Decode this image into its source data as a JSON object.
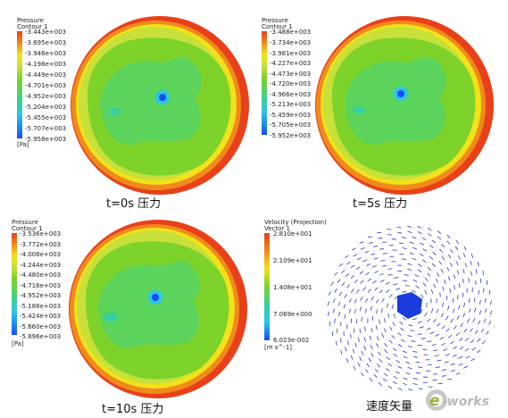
{
  "panels": [
    {
      "legend_title_1": "Pressure",
      "legend_title_2": "Contour 1",
      "unit": "[Pa]",
      "ticks": [
        "-3.443e+003",
        "-3.695e+003",
        "-3.946e+003",
        "-4.198e+003",
        "-4.449e+003",
        "-4.701e+003",
        "-4.952e+003",
        "-5.204e+003",
        "-5.455e+003",
        "-5.707e+003",
        "-5.958e+003"
      ],
      "caption": "t=0s 压力"
    },
    {
      "legend_title_1": "Pressure",
      "legend_title_2": "Contour 1",
      "unit": "[Pa]",
      "ticks": [
        "-3.488e+003",
        "-3.734e+003",
        "-3.981e+003",
        "-4.227e+003",
        "-4.473e+003",
        "-4.720e+003",
        "-4.966e+003",
        "-5.213e+003",
        "-5.459e+003",
        "-5.705e+003",
        "-5.952e+003"
      ],
      "caption": "t=5s 压力"
    },
    {
      "legend_title_1": "Pressure",
      "legend_title_2": "Contour 1",
      "unit": "[Pa]",
      "ticks": [
        "-3.536e+003",
        "-3.772e+003",
        "-4.008e+003",
        "-4.244e+003",
        "-4.480e+003",
        "-4.716e+003",
        "-4.952e+003",
        "-5.188e+003",
        "-5.424e+003",
        "-5.660e+003",
        "-5.896e+003"
      ],
      "caption": "t=10s 压力"
    },
    {
      "legend_title_1": "Velocity (Projection)",
      "legend_title_2": "Vector 1",
      "unit": "[m s^-1]",
      "ticks": [
        "2.810e+001",
        "2.109e+001",
        "1.408e+001",
        "7.069e+000",
        "6.023e-002"
      ],
      "caption": "速度矢量"
    }
  ],
  "logo_text": "e-works",
  "colors": {
    "red": "#e8401a",
    "orange": "#f08a1c",
    "yellow": "#f2e21a",
    "yellowgreen": "#c8e03a",
    "green": "#7ed32a",
    "lightgreen": "#5cd35a",
    "teal": "#35cfa0",
    "cyan": "#29c6e8",
    "blue": "#1a4cf0",
    "vector_blue": "#2438c8"
  }
}
